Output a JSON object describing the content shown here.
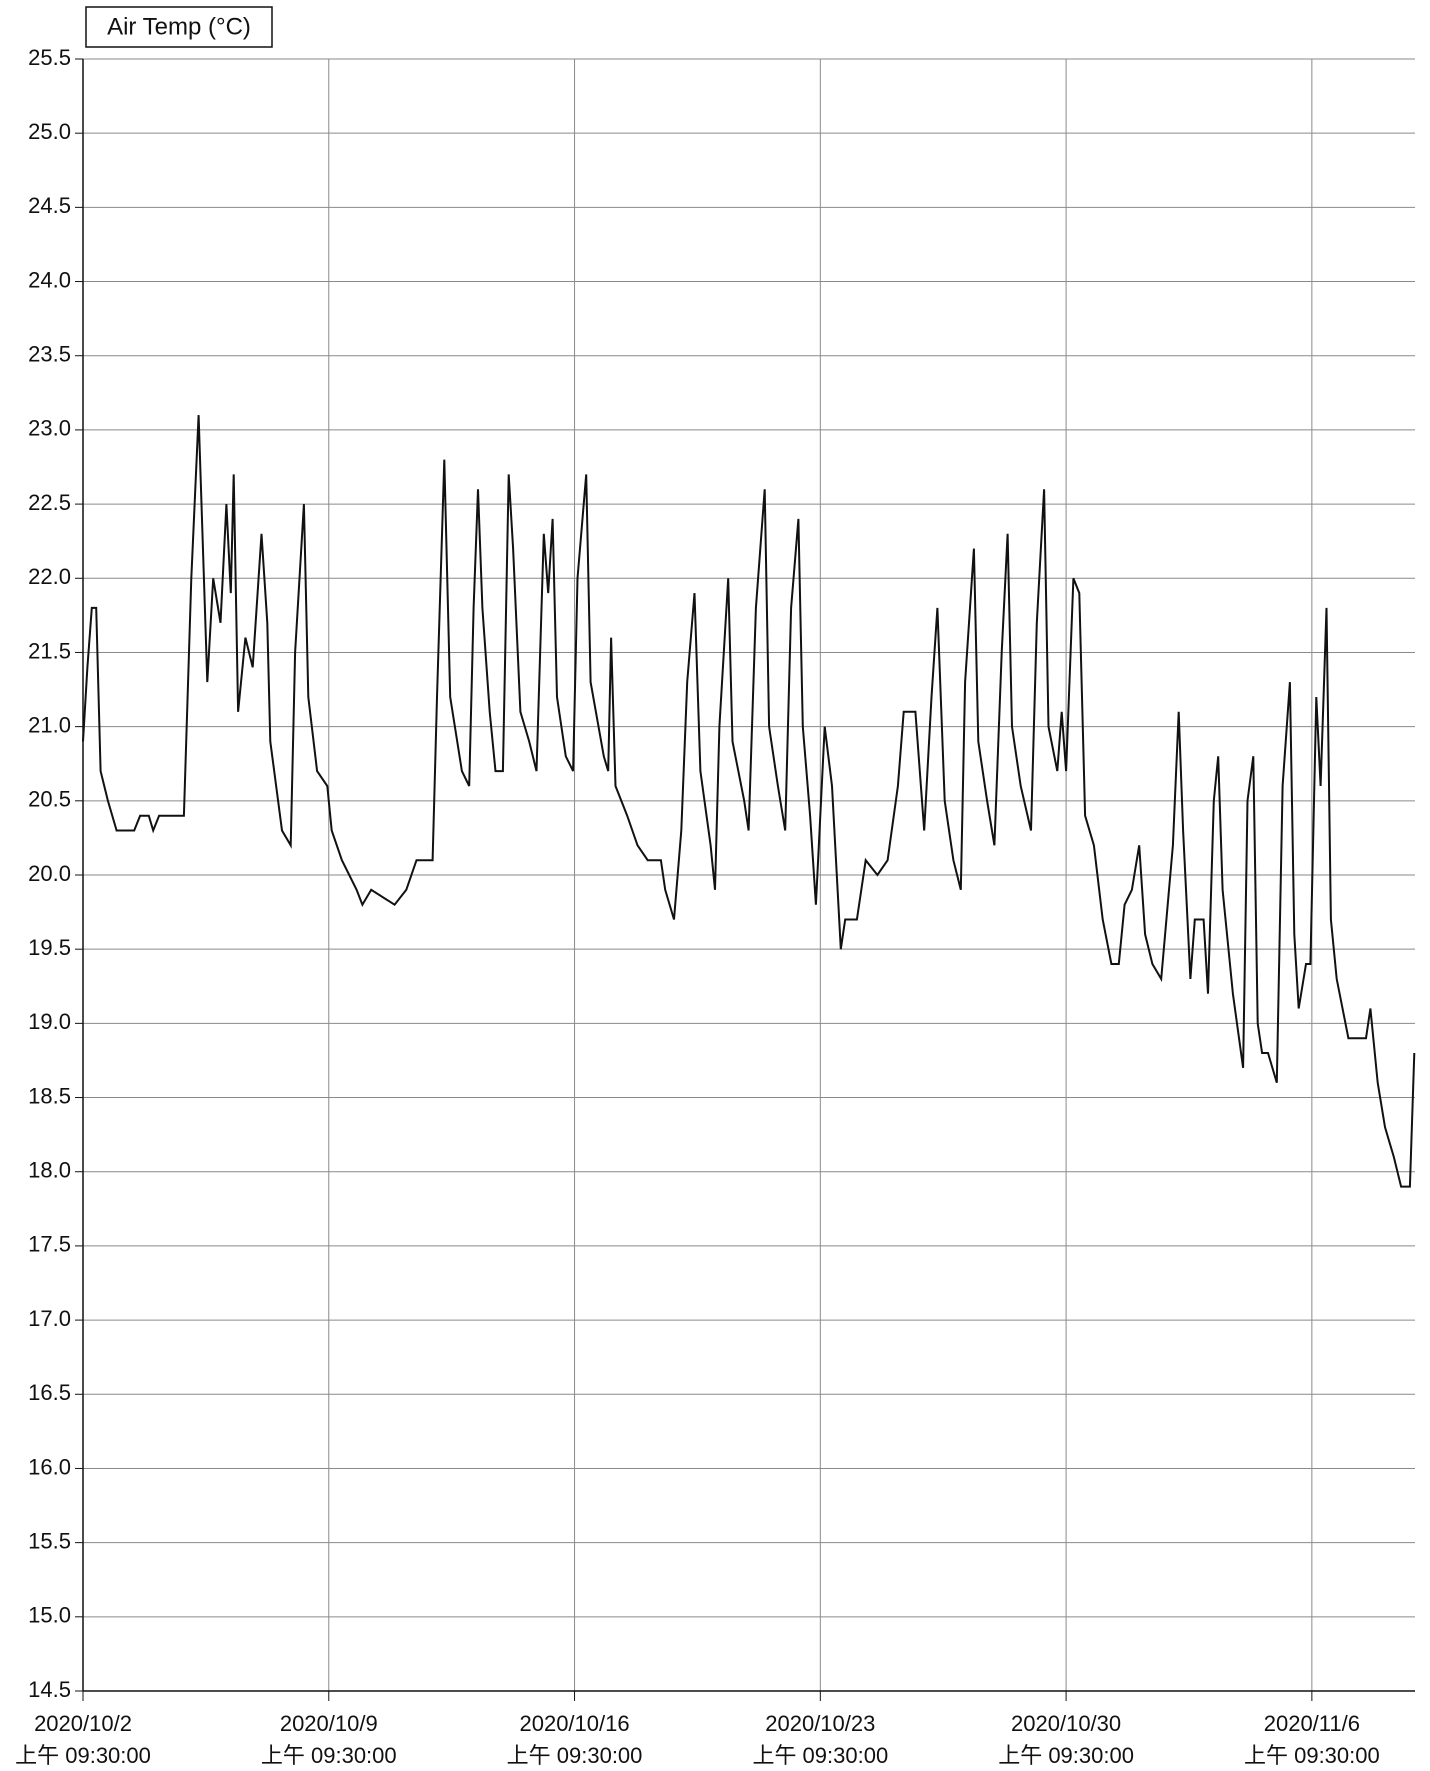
{
  "chart_data": {
    "type": "line",
    "title": "Air Temp (°C)",
    "x": [
      "2020-10-02T09:30",
      "2020-10-02T12:30",
      "2020-10-02T15:30",
      "2020-10-02T18:30",
      "2020-10-02T21:30",
      "2020-10-03T02:30",
      "2020-10-03T08:30",
      "2020-10-03T20:30",
      "2020-10-04T00:30",
      "2020-10-04T06:30",
      "2020-10-04T09:30",
      "2020-10-04T13:30",
      "2020-10-05T06:30",
      "2020-10-05T11:30",
      "2020-10-05T16:30",
      "2020-10-05T22:30",
      "2020-10-06T02:30",
      "2020-10-06T07:30",
      "2020-10-06T11:30",
      "2020-10-06T14:30",
      "2020-10-06T16:30",
      "2020-10-06T19:30",
      "2020-10-07T00:30",
      "2020-10-07T05:30",
      "2020-10-07T11:30",
      "2020-10-07T15:30",
      "2020-10-07T17:30",
      "2020-10-08T01:30",
      "2020-10-08T07:30",
      "2020-10-08T10:30",
      "2020-10-08T16:30",
      "2020-10-08T19:30",
      "2020-10-09T01:30",
      "2020-10-09T08:30",
      "2020-10-09T11:30",
      "2020-10-09T18:30",
      "2020-10-10T04:30",
      "2020-10-10T08:30",
      "2020-10-10T14:30",
      "2020-10-11T06:30",
      "2020-10-11T14:30",
      "2020-10-11T21:30",
      "2020-10-12T08:30",
      "2020-10-12T11:30",
      "2020-10-12T16:30",
      "2020-10-12T20:30",
      "2020-10-13T04:30",
      "2020-10-13T09:30",
      "2020-10-13T12:30",
      "2020-10-13T15:30",
      "2020-10-13T18:30",
      "2020-10-13T23:30",
      "2020-10-14T03:30",
      "2020-10-14T08:30",
      "2020-10-14T12:30",
      "2020-10-14T15:30",
      "2020-10-14T20:30",
      "2020-10-15T02:30",
      "2020-10-15T07:30",
      "2020-10-15T12:30",
      "2020-10-15T15:30",
      "2020-10-15T18:30",
      "2020-10-15T21:30",
      "2020-10-16T03:30",
      "2020-10-16T08:30",
      "2020-10-16T11:30",
      "2020-10-16T17:30",
      "2020-10-16T20:30",
      "2020-10-17T05:30",
      "2020-10-17T08:30",
      "2020-10-17T10:30",
      "2020-10-17T13:30",
      "2020-10-17T21:30",
      "2020-10-18T04:30",
      "2020-10-18T11:30",
      "2020-10-18T20:30",
      "2020-10-18T23:30",
      "2020-10-19T05:30",
      "2020-10-19T10:30",
      "2020-10-19T14:30",
      "2020-10-19T19:30",
      "2020-10-19T23:30",
      "2020-10-20T06:30",
      "2020-10-20T09:30",
      "2020-10-20T12:30",
      "2020-10-20T18:30",
      "2020-10-20T21:30",
      "2020-10-21T05:30",
      "2020-10-21T08:30",
      "2020-10-21T13:30",
      "2020-10-21T19:30",
      "2020-10-21T22:30",
      "2020-10-22T04:30",
      "2020-10-22T09:30",
      "2020-10-22T13:30",
      "2020-10-22T18:30",
      "2020-10-22T21:30",
      "2020-10-23T02:30",
      "2020-10-23T06:30",
      "2020-10-23T12:30",
      "2020-10-23T17:30",
      "2020-10-23T23:30",
      "2020-10-24T02:30",
      "2020-10-24T10:30",
      "2020-10-24T16:30",
      "2020-10-25T00:30",
      "2020-10-25T07:30",
      "2020-10-25T14:30",
      "2020-10-25T18:30",
      "2020-10-26T02:30",
      "2020-10-26T08:30",
      "2020-10-26T13:30",
      "2020-10-26T17:30",
      "2020-10-26T22:30",
      "2020-10-27T04:30",
      "2020-10-27T09:30",
      "2020-10-27T12:30",
      "2020-10-27T18:30",
      "2020-10-27T21:30",
      "2020-10-28T03:30",
      "2020-10-28T08:30",
      "2020-10-28T13:30",
      "2020-10-28T17:30",
      "2020-10-28T20:30",
      "2020-10-29T02:30",
      "2020-10-29T09:30",
      "2020-10-29T13:30",
      "2020-10-29T18:30",
      "2020-10-29T21:30",
      "2020-10-30T03:30",
      "2020-10-30T06:30",
      "2020-10-30T09:30",
      "2020-10-30T14:30",
      "2020-10-30T18:30",
      "2020-10-30T22:30",
      "2020-10-31T04:30",
      "2020-10-31T10:30",
      "2020-10-31T16:30",
      "2020-10-31T21:30",
      "2020-11-01T01:30",
      "2020-11-01T06:30",
      "2020-11-01T11:30",
      "2020-11-01T15:30",
      "2020-11-01T20:30",
      "2020-11-02T02:30",
      "2020-11-02T10:30",
      "2020-11-02T14:30",
      "2020-11-02T17:30",
      "2020-11-02T22:30",
      "2020-11-03T01:30",
      "2020-11-03T07:30",
      "2020-11-03T10:30",
      "2020-11-03T14:30",
      "2020-11-03T17:30",
      "2020-11-03T20:30",
      "2020-11-04T03:30",
      "2020-11-04T10:30",
      "2020-11-04T13:30",
      "2020-11-04T17:30",
      "2020-11-04T20:30",
      "2020-11-04T23:30",
      "2020-11-05T03:30",
      "2020-11-05T09:30",
      "2020-11-05T13:30",
      "2020-11-05T18:30",
      "2020-11-05T21:30",
      "2020-11-06T00:30",
      "2020-11-06T05:30",
      "2020-11-06T08:30",
      "2020-11-06T12:30",
      "2020-11-06T15:30",
      "2020-11-06T19:30",
      "2020-11-06T22:30",
      "2020-11-07T02:30",
      "2020-11-07T10:30",
      "2020-11-07T22:30",
      "2020-11-08T01:30",
      "2020-11-08T06:30",
      "2020-11-08T11:30",
      "2020-11-08T17:30",
      "2020-11-08T22:30",
      "2020-11-09T04:30",
      "2020-11-09T07:30"
    ],
    "series": [
      {
        "color": "#111111",
        "values": [
          20.9,
          21.4,
          21.8,
          21.8,
          20.7,
          20.5,
          20.3,
          20.3,
          20.4,
          20.4,
          20.3,
          20.4,
          20.4,
          22.0,
          23.1,
          21.3,
          22.0,
          21.7,
          22.5,
          21.9,
          22.7,
          21.1,
          21.6,
          21.4,
          22.3,
          21.7,
          20.9,
          20.3,
          20.2,
          21.5,
          22.5,
          21.2,
          20.7,
          20.6,
          20.3,
          20.1,
          19.9,
          19.8,
          19.9,
          19.8,
          19.9,
          20.1,
          20.1,
          21.2,
          22.8,
          21.2,
          20.7,
          20.6,
          21.8,
          22.6,
          21.8,
          21.1,
          20.7,
          20.7,
          22.7,
          22.2,
          21.1,
          20.9,
          20.7,
          22.3,
          21.9,
          22.4,
          21.2,
          20.8,
          20.7,
          22.0,
          22.7,
          21.3,
          20.8,
          20.7,
          21.6,
          20.6,
          20.4,
          20.2,
          20.1,
          20.1,
          19.9,
          19.7,
          20.3,
          21.3,
          21.9,
          20.7,
          20.2,
          19.9,
          21.0,
          22.0,
          20.9,
          20.5,
          20.3,
          21.8,
          22.6,
          21.0,
          20.6,
          20.3,
          21.8,
          22.4,
          21.0,
          20.4,
          19.8,
          21.0,
          20.6,
          19.5,
          19.7,
          19.7,
          20.1,
          20.0,
          20.1,
          20.6,
          21.1,
          21.1,
          20.3,
          21.2,
          21.8,
          20.5,
          20.1,
          19.9,
          21.3,
          22.2,
          20.9,
          20.5,
          20.2,
          21.5,
          22.3,
          21.0,
          20.6,
          20.3,
          21.7,
          22.6,
          21.0,
          20.7,
          21.1,
          20.7,
          22.0,
          21.9,
          20.4,
          20.2,
          19.7,
          19.4,
          19.4,
          19.8,
          19.9,
          20.2,
          19.6,
          19.4,
          19.3,
          20.2,
          21.1,
          20.3,
          19.3,
          19.7,
          19.7,
          19.2,
          20.5,
          20.8,
          19.9,
          19.2,
          18.7,
          20.5,
          20.8,
          19.0,
          18.8,
          18.8,
          18.6,
          20.6,
          21.3,
          19.6,
          19.1,
          19.4,
          19.4,
          21.2,
          20.6,
          21.8,
          19.7,
          19.3,
          18.9,
          18.9,
          19.1,
          18.6,
          18.3,
          18.1,
          17.9,
          17.9,
          18.8
        ]
      }
    ],
    "xlim": [
      "2020-10-02T09:30",
      "2020-11-09T08:00"
    ],
    "xticks": [
      {
        "value": "2020-10-02T09:30",
        "label": [
          "2020/10/2",
          "上午 09:30:00"
        ]
      },
      {
        "value": "2020-10-09T09:30",
        "label": [
          "2020/10/9",
          "上午 09:30:00"
        ]
      },
      {
        "value": "2020-10-16T09:30",
        "label": [
          "2020/10/16",
          "上午 09:30:00"
        ]
      },
      {
        "value": "2020-10-23T09:30",
        "label": [
          "2020/10/23",
          "上午 09:30:00"
        ]
      },
      {
        "value": "2020-10-30T09:30",
        "label": [
          "2020/10/30",
          "上午 09:30:00"
        ]
      },
      {
        "value": "2020-11-06T09:30",
        "label": [
          "2020/11/6",
          "上午 09:30:00"
        ]
      }
    ],
    "ylim": [
      14.5,
      25.5
    ],
    "yticks": [
      14.5,
      {
        "value": 15,
        "label": "15.0"
      },
      15.5,
      {
        "value": 16,
        "label": "16.0"
      },
      16.5,
      {
        "value": 17,
        "label": "17.0"
      },
      17.5,
      {
        "value": 18,
        "label": "18.0"
      },
      18.5,
      {
        "value": 19,
        "label": "19.0"
      },
      19.5,
      {
        "value": 20,
        "label": "20.0"
      },
      20.5,
      {
        "value": 21,
        "label": "21.0"
      },
      21.5,
      {
        "value": 22,
        "label": "22.0"
      },
      22.5,
      {
        "value": 23,
        "label": "23.0"
      },
      23.5,
      {
        "value": 24,
        "label": "24.0"
      },
      24.5,
      {
        "value": 25,
        "label": "25.0"
      },
      25.5
    ],
    "grid": true
  }
}
